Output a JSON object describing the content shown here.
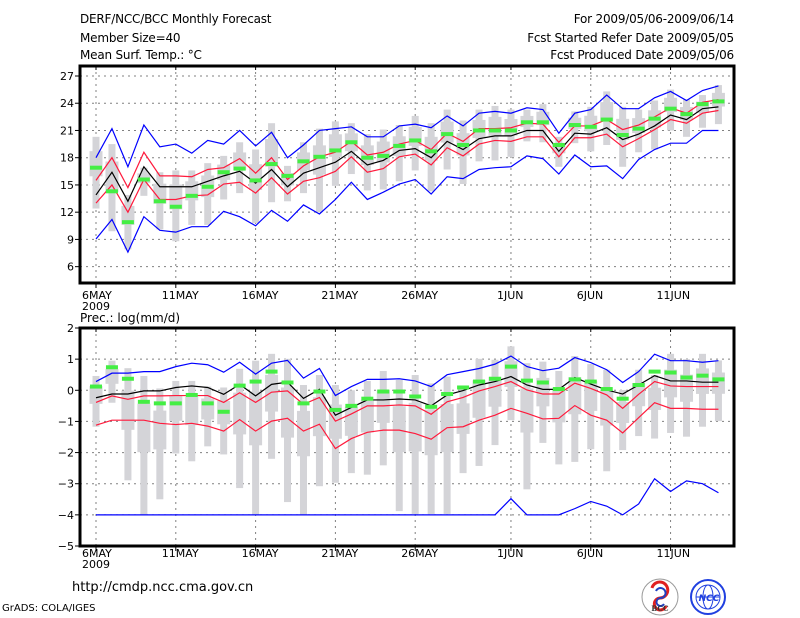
{
  "header": {
    "title": "DERF/NCC/BCC Monthly Forecast",
    "member_size": "Member Size=40",
    "variable": "Mean Surf. Temp.: °C",
    "period": "For 2009/05/06-2009/06/14",
    "refer_date": "Fcst Started Refer Date 2009/05/05",
    "produced_date": "Fcst Produced Date 2009/05/06"
  },
  "footer": {
    "url": "http://cmdp.ncc.cma.gov.cn",
    "grads": "GrADS: COLA/IGES",
    "logo_bcc": "BCC",
    "logo_ncc": "NCC"
  },
  "colors": {
    "blue": "#0000ff",
    "red": "#ff1a3c",
    "black": "#000000",
    "green": "#44ee44",
    "gray": "#d4d4d8",
    "grid": "#808080"
  },
  "chart_data": [
    {
      "type": "line",
      "title": "Mean Surf. Temp.: °C",
      "ylabel": "",
      "ylim": [
        4,
        28
      ],
      "yticks": [
        6,
        9,
        12,
        15,
        18,
        21,
        24,
        27
      ],
      "xticks": [
        {
          "day": 0,
          "label": "6MAY",
          "sub": "2009"
        },
        {
          "day": 5,
          "label": "11MAY"
        },
        {
          "day": 10,
          "label": "16MAY"
        },
        {
          "day": 15,
          "label": "21MAY"
        },
        {
          "day": 20,
          "label": "26MAY"
        },
        {
          "day": 26,
          "label": "1JUN"
        },
        {
          "day": 31,
          "label": "6JUN"
        },
        {
          "day": 36,
          "label": "11JUN"
        }
      ],
      "grid": true,
      "n_days": 40,
      "series": [
        {
          "name": "max",
          "color": "blue",
          "values": [
            18.0,
            21.2,
            17.0,
            21.6,
            19.2,
            19.5,
            18.5,
            19.9,
            19.5,
            21.0,
            19.3,
            20.8,
            18.0,
            19.4,
            21.0,
            21.2,
            21.4,
            20.3,
            20.3,
            21.5,
            21.7,
            21.3,
            22.6,
            21.5,
            22.9,
            23.1,
            22.9,
            23.5,
            23.3,
            20.7,
            22.9,
            23.3,
            24.9,
            23.4,
            23.4,
            24.6,
            25.3,
            24.3,
            25.4,
            25.9
          ]
        },
        {
          "name": "upper",
          "color": "red",
          "values": [
            15.5,
            18.0,
            14.7,
            18.6,
            16.0,
            16.0,
            15.9,
            16.7,
            16.9,
            17.9,
            16.3,
            18.0,
            15.6,
            17.1,
            18.1,
            18.6,
            19.8,
            18.3,
            18.6,
            19.5,
            19.9,
            18.9,
            20.7,
            19.8,
            21.2,
            21.2,
            21.3,
            21.8,
            21.7,
            19.7,
            21.5,
            21.5,
            22.2,
            21.1,
            21.6,
            22.5,
            23.5,
            22.9,
            24.1,
            24.4
          ]
        },
        {
          "name": "ensemble-mean",
          "color": "black",
          "values": [
            13.9,
            16.4,
            13.2,
            17.0,
            14.8,
            14.8,
            14.8,
            15.4,
            16.0,
            16.5,
            15.2,
            16.7,
            14.8,
            16.3,
            16.9,
            17.5,
            18.7,
            17.2,
            17.7,
            18.8,
            19.0,
            18.0,
            19.8,
            18.9,
            20.1,
            20.4,
            20.4,
            21.0,
            21.0,
            18.7,
            20.7,
            20.6,
            21.3,
            20.0,
            20.6,
            21.5,
            22.7,
            22.2,
            23.4,
            23.6
          ]
        },
        {
          "name": "lower",
          "color": "red",
          "values": [
            13.0,
            15.0,
            12.0,
            15.6,
            13.4,
            13.4,
            13.8,
            13.9,
            15.1,
            15.3,
            14.1,
            15.8,
            14.0,
            15.4,
            15.8,
            16.5,
            18.1,
            16.4,
            16.8,
            18.1,
            18.4,
            17.2,
            19.1,
            18.2,
            19.5,
            19.9,
            19.8,
            20.3,
            20.3,
            18.1,
            20.2,
            20.2,
            20.6,
            19.2,
            20.1,
            21.1,
            22.2,
            21.8,
            22.9,
            23.2
          ]
        },
        {
          "name": "min",
          "color": "blue",
          "values": [
            9.05,
            11.2,
            7.6,
            11.5,
            10.0,
            9.8,
            10.4,
            10.4,
            12.1,
            11.5,
            10.5,
            12.2,
            11.0,
            12.8,
            11.8,
            13.4,
            15.3,
            13.4,
            14.2,
            15.1,
            15.6,
            14.0,
            15.9,
            15.7,
            16.7,
            16.9,
            17.0,
            18.2,
            17.9,
            16.2,
            18.3,
            17.0,
            17.1,
            15.7,
            17.8,
            18.9,
            19.6,
            19.6,
            21.0,
            21.0
          ]
        }
      ],
      "markers": {
        "name": "green-marker",
        "color": "green",
        "values": [
          16.9,
          14.3,
          10.9,
          15.6,
          13.2,
          12.6,
          13.8,
          14.8,
          16.4,
          16.8,
          15.5,
          17.3,
          16.0,
          17.6,
          18.1,
          18.8,
          19.7,
          18.0,
          18.2,
          19.3,
          19.9,
          18.7,
          20.6,
          19.4,
          21.0,
          21.0,
          21.0,
          21.9,
          21.9,
          19.4,
          21.6,
          21.4,
          22.2,
          20.5,
          21.2,
          22.3,
          23.4,
          22.8,
          23.9,
          24.2
        ]
      },
      "spread": {
        "hi": [
          20.3,
          19.5,
          13.9,
          16.9,
          16.4,
          16.6,
          16.6,
          17.4,
          18.2,
          19.7,
          18.9,
          21.8,
          17.1,
          19.7,
          21.2,
          22.0,
          21.8,
          20.6,
          21.1,
          21.6,
          22.6,
          21.8,
          23.3,
          22.1,
          23.3,
          23.7,
          23.3,
          23.3,
          23.9,
          20.3,
          23.1,
          23.6,
          25.3,
          23.6,
          23.3,
          24.3,
          25.5,
          24.4,
          24.9,
          26.0
        ],
        "lo": [
          12.4,
          9.9,
          7.9,
          13.8,
          10.1,
          8.8,
          10.6,
          10.6,
          13.4,
          14.1,
          10.8,
          13.1,
          13.2,
          14.1,
          12.0,
          14.9,
          16.2,
          14.4,
          14.5,
          15.4,
          16.6,
          14.3,
          16.7,
          15.1,
          17.6,
          17.7,
          18.1,
          19.8,
          19.7,
          17.0,
          19.6,
          18.7,
          19.4,
          17.0,
          18.6,
          18.9,
          21.0,
          20.3,
          21.3,
          21.7
        ]
      }
    },
    {
      "type": "line",
      "title": "Prec.: log(mm/d)",
      "ylabel": "Prec.: log(mm/d)",
      "ylim": [
        -5,
        2
      ],
      "yticks": [
        -5,
        -4,
        -3,
        -2,
        -1,
        0,
        1,
        2
      ],
      "xticks": [
        {
          "day": 0,
          "label": "6MAY",
          "sub": "2009"
        },
        {
          "day": 5,
          "label": "11MAY"
        },
        {
          "day": 10,
          "label": "16MAY"
        },
        {
          "day": 15,
          "label": "21MAY"
        },
        {
          "day": 20,
          "label": "26MAY"
        },
        {
          "day": 26,
          "label": "1JUN"
        },
        {
          "day": 31,
          "label": "6JUN"
        },
        {
          "day": 36,
          "label": "11JUN"
        }
      ],
      "grid": true,
      "n_days": 40,
      "series": [
        {
          "name": "max",
          "color": "blue",
          "values": [
            0.28,
            0.55,
            0.55,
            0.6,
            0.6,
            0.76,
            0.87,
            0.82,
            0.58,
            0.9,
            0.52,
            0.87,
            0.96,
            0.39,
            0.7,
            -0.17,
            0.12,
            0.35,
            0.35,
            0.37,
            0.3,
            0.12,
            0.5,
            0.6,
            0.7,
            0.84,
            1.1,
            0.76,
            0.63,
            0.71,
            1.05,
            0.89,
            0.66,
            0.25,
            0.6,
            1.16,
            0.95,
            0.95,
            0.9,
            0.95
          ]
        },
        {
          "name": "upper",
          "color": "red",
          "values": [
            -0.39,
            -0.18,
            -0.29,
            -0.18,
            -0.18,
            -0.17,
            -0.17,
            -0.17,
            -0.39,
            -0.08,
            -0.39,
            -0.06,
            -0.02,
            -0.45,
            -0.23,
            -0.99,
            -0.76,
            -0.5,
            -0.5,
            -0.47,
            -0.5,
            -0.77,
            -0.37,
            -0.23,
            -0.02,
            0.12,
            0.28,
            0.01,
            -0.12,
            -0.12,
            0.23,
            0.06,
            -0.15,
            -0.58,
            -0.13,
            0.28,
            0.14,
            0.12,
            0.12,
            0.12
          ]
        },
        {
          "name": "ensemble-mean",
          "color": "black",
          "values": [
            -0.24,
            -0.12,
            -0.12,
            -0.02,
            -0.02,
            0.09,
            0.14,
            0.09,
            -0.13,
            0.19,
            -0.18,
            0.19,
            0.26,
            -0.26,
            0.03,
            -0.8,
            -0.55,
            -0.31,
            -0.31,
            -0.28,
            -0.31,
            -0.5,
            -0.15,
            -0.01,
            0.17,
            0.28,
            0.44,
            0.17,
            0.03,
            0.03,
            0.41,
            0.2,
            0.01,
            -0.12,
            0.17,
            0.47,
            0.3,
            0.3,
            0.26,
            0.26
          ]
        },
        {
          "name": "lower",
          "color": "red",
          "values": [
            -1.12,
            -0.96,
            -0.96,
            -0.96,
            -1.06,
            -1.1,
            -1.06,
            -1.15,
            -1.31,
            -0.94,
            -1.31,
            -0.99,
            -0.9,
            -1.31,
            -1.09,
            -1.87,
            -1.55,
            -1.35,
            -1.28,
            -1.28,
            -1.39,
            -1.57,
            -1.2,
            -1.17,
            -0.96,
            -0.8,
            -0.58,
            -0.74,
            -0.92,
            -0.9,
            -0.49,
            -0.8,
            -0.96,
            -1.37,
            -0.88,
            -0.4,
            -0.58,
            -0.58,
            -0.61,
            -0.61
          ]
        },
        {
          "name": "min",
          "color": "blue",
          "values": [
            -4,
            -4,
            -4,
            -4,
            -4,
            -4,
            -4,
            -4,
            -4,
            -4,
            -4,
            -4,
            -4,
            -4,
            -4,
            -4,
            -4,
            -4,
            -4,
            -4,
            -4,
            -4,
            -4,
            -4,
            -4,
            -4,
            -3.48,
            -4,
            -4,
            -4,
            -3.8,
            -3.57,
            -3.72,
            -4,
            -3.65,
            -2.84,
            -3.25,
            -2.91,
            -3.0,
            -3.29
          ]
        }
      ],
      "markers": {
        "name": "green-marker",
        "color": "green",
        "values": [
          0.12,
          0.74,
          0.37,
          -0.37,
          -0.42,
          -0.42,
          -0.15,
          -0.42,
          -0.69,
          0.15,
          0.28,
          0.6,
          0.25,
          -0.42,
          -0.04,
          -0.63,
          -0.5,
          -0.27,
          -0.04,
          -0.04,
          -0.2,
          -0.53,
          -0.12,
          0.09,
          0.28,
          0.37,
          0.76,
          0.31,
          0.25,
          0.04,
          0.35,
          0.28,
          0.04,
          -0.27,
          0.17,
          0.6,
          0.57,
          0.41,
          0.47,
          0.35
        ]
      },
      "spread": {
        "hi": [
          0.46,
          0.95,
          0.71,
          0.46,
          0.06,
          0.3,
          0.3,
          0.12,
          0.09,
          0.69,
          0.95,
          1.17,
          1.01,
          0.17,
          0.49,
          0.17,
          0.0,
          0.3,
          0.62,
          0.33,
          0.49,
          0.22,
          0.44,
          0.14,
          1.01,
          0.98,
          1.41,
          0.87,
          0.92,
          0.62,
          1.1,
          0.84,
          0.66,
          0.01,
          0.66,
          0.49,
          1.17,
          1.0,
          1.17,
          0.96
        ],
        "lo": [
          -1.17,
          -0.4,
          -2.89,
          -3.99,
          -3.5,
          -2.03,
          -2.28,
          -1.8,
          -2.06,
          -3.14,
          -3.99,
          -2.2,
          -3.59,
          -3.99,
          -3.08,
          -2.97,
          -2.66,
          -2.71,
          -2.41,
          -3.88,
          -3.97,
          -3.97,
          -3.97,
          -2.66,
          -2.43,
          -1.76,
          -0.96,
          -3.18,
          -1.69,
          -2.38,
          -2.3,
          -1.89,
          -2.6,
          -1.92,
          -1.47,
          -1.55,
          -1.37,
          -1.49,
          -1.17,
          -0.99
        ]
      }
    }
  ]
}
